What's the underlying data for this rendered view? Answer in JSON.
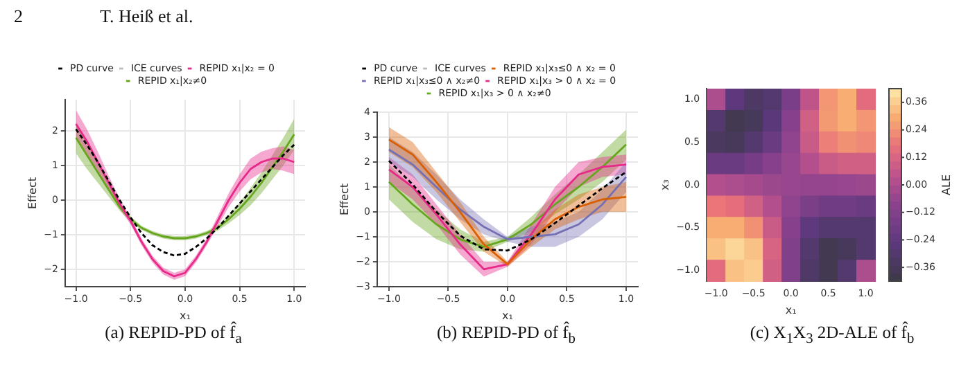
{
  "chart_data": [
    {
      "type": "line",
      "xlabel": "x₁",
      "ylabel": "Effect",
      "annotations": [
        "2",
        "T. Heiß et al.",
        "(a) REPID-PD of f̂$_{a}$"
      ],
      "legend": "top",
      "grid": true,
      "marker": "none",
      "x": [
        -1,
        -0.9,
        -0.8,
        -0.7,
        -0.6,
        -0.5,
        -0.4,
        -0.3,
        -0.2,
        -0.1,
        0,
        0.1,
        0.2,
        0.3,
        0.4,
        0.5,
        0.6,
        0.7,
        0.8,
        0.9,
        1
      ],
      "xlim": [
        -1.1,
        1.1
      ],
      "xticks": [
        {
          "value": -1,
          "label": "−1.0"
        },
        {
          "value": -0.5,
          "label": "−0.5"
        },
        {
          "value": 0,
          "label": "0.0"
        },
        {
          "value": 0.5,
          "label": "0.5"
        },
        {
          "value": 1,
          "label": "1.0"
        }
      ],
      "ylim": [
        -2.5,
        2.9
      ],
      "yticks": [
        {
          "value": -2,
          "label": "−2"
        },
        {
          "value": -1,
          "label": "−1"
        },
        0,
        1,
        2
      ],
      "series": [
        {
          "name": "PD curve",
          "color": "#000000",
          "line_style": "dashed",
          "values": [
            2.05,
            1.6,
            1.1,
            0.55,
            0,
            -0.5,
            -0.95,
            -1.3,
            -1.5,
            -1.6,
            -1.55,
            -1.35,
            -1.1,
            -0.8,
            -0.45,
            -0.1,
            0.25,
            0.6,
            0.95,
            1.3,
            1.6
          ]
        },
        {
          "name": "ICE curves",
          "color": "#bbbbbb",
          "values": [
            null,
            null,
            null,
            null,
            null,
            null,
            null,
            null,
            null,
            null,
            null,
            null,
            null,
            null,
            null,
            null,
            null,
            null,
            null,
            null,
            null
          ]
        },
        {
          "name": "REPID x₁|x₂ = 0",
          "color": "#e7298a",
          "values": [
            2.2,
            1.7,
            1.1,
            0.5,
            -0.1,
            -0.6,
            -1.2,
            -1.7,
            -2.05,
            -2.2,
            -2.1,
            -1.7,
            -1.2,
            -0.6,
            0,
            0.5,
            0.9,
            1.1,
            1.2,
            1.2,
            1.1
          ],
          "lower": [
            1.8,
            1.35,
            0.8,
            0.3,
            -0.25,
            -0.7,
            -1.3,
            -1.8,
            -2.15,
            -2.3,
            -2.2,
            -1.8,
            -1.3,
            -0.75,
            -0.2,
            0.25,
            0.6,
            0.8,
            0.9,
            0.85,
            0.75
          ],
          "upper": [
            2.6,
            2.05,
            1.4,
            0.7,
            0.05,
            -0.5,
            -1.1,
            -1.6,
            -1.95,
            -2.1,
            -2.0,
            -1.6,
            -1.1,
            -0.45,
            0.2,
            0.75,
            1.2,
            1.4,
            1.5,
            1.55,
            1.45
          ]
        },
        {
          "name": "REPID x₁|x₂≠0",
          "color": "#66a61e",
          "values": [
            1.8,
            1.3,
            0.8,
            0.3,
            -0.2,
            -0.55,
            -0.8,
            -0.95,
            -1.05,
            -1.1,
            -1.1,
            -1.05,
            -0.95,
            -0.8,
            -0.55,
            -0.25,
            0.1,
            0.5,
            0.95,
            1.4,
            1.9
          ],
          "lower": [
            1.35,
            0.9,
            0.5,
            0.1,
            -0.3,
            -0.63,
            -0.86,
            -1.01,
            -1.11,
            -1.16,
            -1.16,
            -1.11,
            -1.01,
            -0.88,
            -0.67,
            -0.43,
            -0.15,
            0.2,
            0.6,
            1.0,
            1.45
          ],
          "upper": [
            2.25,
            1.7,
            1.1,
            0.5,
            -0.1,
            -0.47,
            -0.74,
            -0.89,
            -0.99,
            -1.04,
            -1.04,
            -0.99,
            -0.89,
            -0.72,
            -0.43,
            -0.07,
            0.35,
            0.8,
            1.3,
            1.8,
            2.35
          ]
        }
      ]
    },
    {
      "type": "line",
      "xlabel": "x₁",
      "ylabel": "Effect",
      "annotations": [
        "(b) REPID-PD of f̂$_{b}$"
      ],
      "legend": "top",
      "grid": true,
      "marker": "none",
      "x": [
        -1,
        -0.8,
        -0.6,
        -0.4,
        -0.2,
        0,
        0.2,
        0.4,
        0.6,
        0.8,
        1
      ],
      "xlim": [
        -1.1,
        1.1
      ],
      "xticks": [
        {
          "value": -1,
          "label": "−1.0"
        },
        {
          "value": -0.5,
          "label": "−0.5"
        },
        {
          "value": 0,
          "label": "0.0"
        },
        {
          "value": 0.5,
          "label": "0.5"
        },
        {
          "value": 1,
          "label": "1.0"
        }
      ],
      "ylim": [
        -3,
        4
      ],
      "yticks": [
        {
          "value": -3,
          "label": "−3"
        },
        {
          "value": -2,
          "label": "−2"
        },
        {
          "value": -1,
          "label": "−1"
        },
        0,
        1,
        2,
        3,
        4
      ],
      "series": [
        {
          "name": "PD curve",
          "color": "#000000",
          "line_style": "dashed",
          "values": [
            2.05,
            1.1,
            0,
            -0.95,
            -1.5,
            -1.55,
            -1.1,
            -0.45,
            0.25,
            0.95,
            1.6
          ]
        },
        {
          "name": "ICE curves",
          "color": "#bbbbbb",
          "values": [
            null,
            null,
            null,
            null,
            null,
            null,
            null,
            null,
            null,
            null,
            null
          ]
        },
        {
          "name": "REPID x₁|x₃≤0 ∧ x₂ = 0",
          "color": "#d95f02",
          "values": [
            2.9,
            2.3,
            1.2,
            0,
            -1.3,
            -2.1,
            -1.1,
            -0.3,
            0.2,
            0.5,
            0.6
          ],
          "lower": [
            2.4,
            1.8,
            0.8,
            -0.4,
            -1.6,
            -2.2,
            -1.4,
            -0.7,
            -0.3,
            0,
            0
          ],
          "upper": [
            3.4,
            2.8,
            1.6,
            0.4,
            -1.0,
            -2.0,
            -0.8,
            0.1,
            0.7,
            1.0,
            1.2
          ]
        },
        {
          "name": "REPID x₁|x₃≤0 ∧ x₂≠0",
          "color": "#7570b3",
          "values": [
            2.5,
            1.9,
            1.0,
            0.1,
            -0.6,
            -1.1,
            -1.0,
            -0.9,
            -0.5,
            0.3,
            1.4
          ],
          "lower": [
            2.0,
            1.4,
            0.5,
            -0.3,
            -0.9,
            -1.2,
            -1.4,
            -1.4,
            -1.0,
            -0.3,
            0.8
          ],
          "upper": [
            3.0,
            2.4,
            1.5,
            0.5,
            -0.3,
            -1.0,
            -0.6,
            -0.4,
            0,
            0.9,
            2.0
          ]
        },
        {
          "name": "REPID x₁|x₃ > 0 ∧ x₂ = 0",
          "color": "#e7298a",
          "values": [
            1.7,
            1.0,
            -0.1,
            -1.3,
            -2.3,
            -2.1,
            -0.9,
            0.5,
            1.5,
            1.8,
            1.9
          ],
          "lower": [
            1.2,
            0.5,
            -0.5,
            -1.7,
            -2.6,
            -2.2,
            -1.3,
            0,
            1.0,
            1.4,
            1.5
          ],
          "upper": [
            2.2,
            1.5,
            0.3,
            -0.9,
            -2.0,
            -2.0,
            -0.5,
            1.0,
            2.0,
            2.2,
            2.3
          ]
        },
        {
          "name": "REPID x₁|x₃ > 0 ∧ x₂≠0",
          "color": "#66a61e",
          "values": [
            1.2,
            0.3,
            -0.5,
            -1.1,
            -1.4,
            -1.1,
            -0.5,
            0.3,
            1.0,
            1.8,
            2.7
          ],
          "lower": [
            0.5,
            -0.4,
            -1.1,
            -1.5,
            -1.6,
            -1.2,
            -0.8,
            -0.1,
            0.5,
            1.2,
            2.1
          ],
          "upper": [
            1.9,
            1.0,
            0.1,
            -0.7,
            -1.2,
            -1.0,
            -0.2,
            0.7,
            1.5,
            2.4,
            3.3
          ]
        }
      ]
    },
    {
      "type": "heatmap",
      "xlabel": "x₁",
      "ylabel": "x₃",
      "clabel": "ALE",
      "annotations": [
        "(c) X$_{1}$X$_{3}$ 2D-ALE of f̂$_{b}$"
      ],
      "categories": [
        "−1.0",
        null,
        "−0.5",
        null,
        "0.0",
        null,
        "0.5",
        null,
        "1.0"
      ],
      "y_categories": [
        "1.0",
        null,
        "0.5",
        null,
        "0.0",
        null,
        "−0.5",
        null,
        "−1.0"
      ],
      "clim": [
        -0.42,
        0.42
      ],
      "cticks": [
        {
          "value": -0.36,
          "label": "−0.36"
        },
        {
          "value": -0.24,
          "label": "−0.24"
        },
        {
          "value": -0.12,
          "label": "−0.12"
        },
        {
          "value": 0,
          "label": "0.00"
        },
        {
          "value": 0.12,
          "label": "0.12"
        },
        {
          "value": 0.24,
          "label": "0.24"
        },
        {
          "value": 0.36,
          "label": "0.36"
        }
      ],
      "cells": [
        [
          0.0,
          -0.25,
          -0.33,
          -0.3,
          -0.15,
          0.05,
          0.25,
          0.3,
          0.15
        ],
        [
          -0.3,
          -0.38,
          -0.36,
          -0.26,
          -0.1,
          0.1,
          0.26,
          0.3,
          0.25
        ],
        [
          -0.34,
          -0.36,
          -0.3,
          -0.2,
          -0.07,
          0.08,
          0.2,
          0.24,
          0.22
        ],
        [
          -0.2,
          -0.2,
          -0.16,
          -0.1,
          -0.05,
          0.02,
          0.08,
          0.1,
          0.1
        ],
        [
          0.02,
          0.0,
          -0.02,
          -0.04,
          -0.05,
          -0.06,
          -0.06,
          -0.05,
          -0.04
        ],
        [
          0.18,
          0.16,
          0.1,
          0.02,
          -0.07,
          -0.14,
          -0.18,
          -0.18,
          -0.2
        ],
        [
          0.3,
          0.3,
          0.24,
          0.08,
          -0.1,
          -0.24,
          -0.3,
          -0.3,
          -0.3
        ],
        [
          0.34,
          0.38,
          0.34,
          0.12,
          -0.12,
          -0.3,
          -0.38,
          -0.36,
          -0.3
        ],
        [
          0.15,
          0.34,
          0.36,
          0.1,
          -0.12,
          -0.32,
          -0.38,
          -0.3,
          0.0
        ]
      ]
    }
  ]
}
